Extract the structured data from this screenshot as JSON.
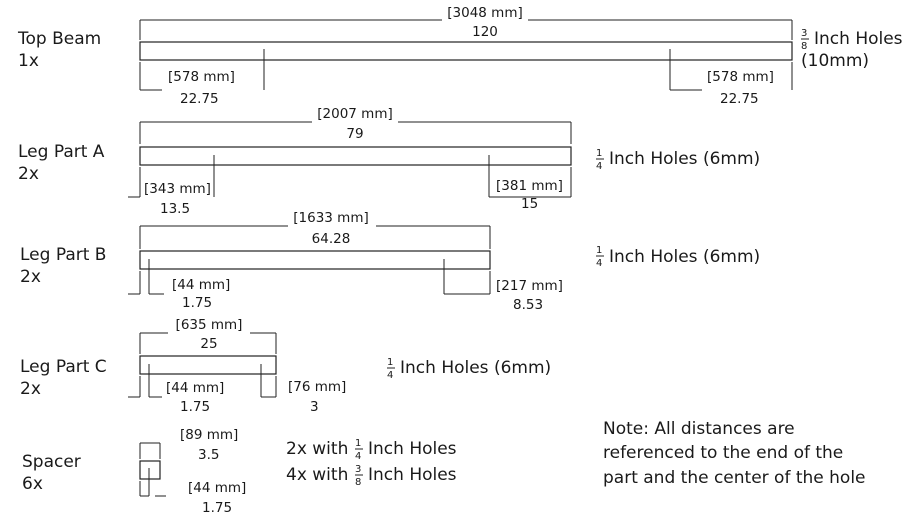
{
  "top_beam": {
    "name": "Top Beam",
    "qty": "1x",
    "length_mm": "[3048 mm]",
    "length_in": "120",
    "left_mm": "[578 mm]",
    "left_in": "22.75",
    "right_mm": "[578 mm]",
    "right_in": "22.75",
    "hole_frac_num": "3",
    "hole_frac_den": "8",
    "holes_text": "Inch Holes",
    "holes_metric": "(10mm)"
  },
  "leg_a": {
    "name": "Leg Part A",
    "qty": "2x",
    "length_mm": "[2007 mm]",
    "length_in": "79",
    "left_mm": "[343 mm]",
    "left_in": "13.5",
    "right_mm": "[381 mm]",
    "right_in": "15",
    "hole_frac_num": "1",
    "hole_frac_den": "4",
    "holes_text": "Inch Holes (6mm)"
  },
  "leg_b": {
    "name": "Leg Part B",
    "qty": "2x",
    "length_mm": "[1633 mm]",
    "length_in": "64.28",
    "left_mm": "[44 mm]",
    "left_in": "1.75",
    "right_mm": "[217 mm]",
    "right_in": "8.53",
    "hole_frac_num": "1",
    "hole_frac_den": "4",
    "holes_text": "Inch Holes (6mm)"
  },
  "leg_c": {
    "name": "Leg Part C",
    "qty": "2x",
    "length_mm": "[635 mm]",
    "length_in": "25",
    "left_mm": "[44 mm]",
    "left_in": "1.75",
    "right_mm": "[76 mm]",
    "right_in": "3",
    "hole_frac_num": "1",
    "hole_frac_den": "4",
    "holes_text": "Inch Holes (6mm)"
  },
  "spacer": {
    "name": "Spacer",
    "qty": "6x",
    "length_mm": "[89 mm]",
    "length_in": "3.5",
    "hole_mm": "[44 mm]",
    "hole_in": "1.75",
    "line1_prefix": "2x with",
    "line1_num": "1",
    "line1_den": "4",
    "line1_suffix": "Inch Holes",
    "line2_prefix": "4x with",
    "line2_num": "3",
    "line2_den": "8",
    "line2_suffix": "Inch Holes"
  },
  "note": {
    "line1": "Note: All distances are",
    "line2": "referenced to the end of the",
    "line3": "part and the center of the hole"
  }
}
